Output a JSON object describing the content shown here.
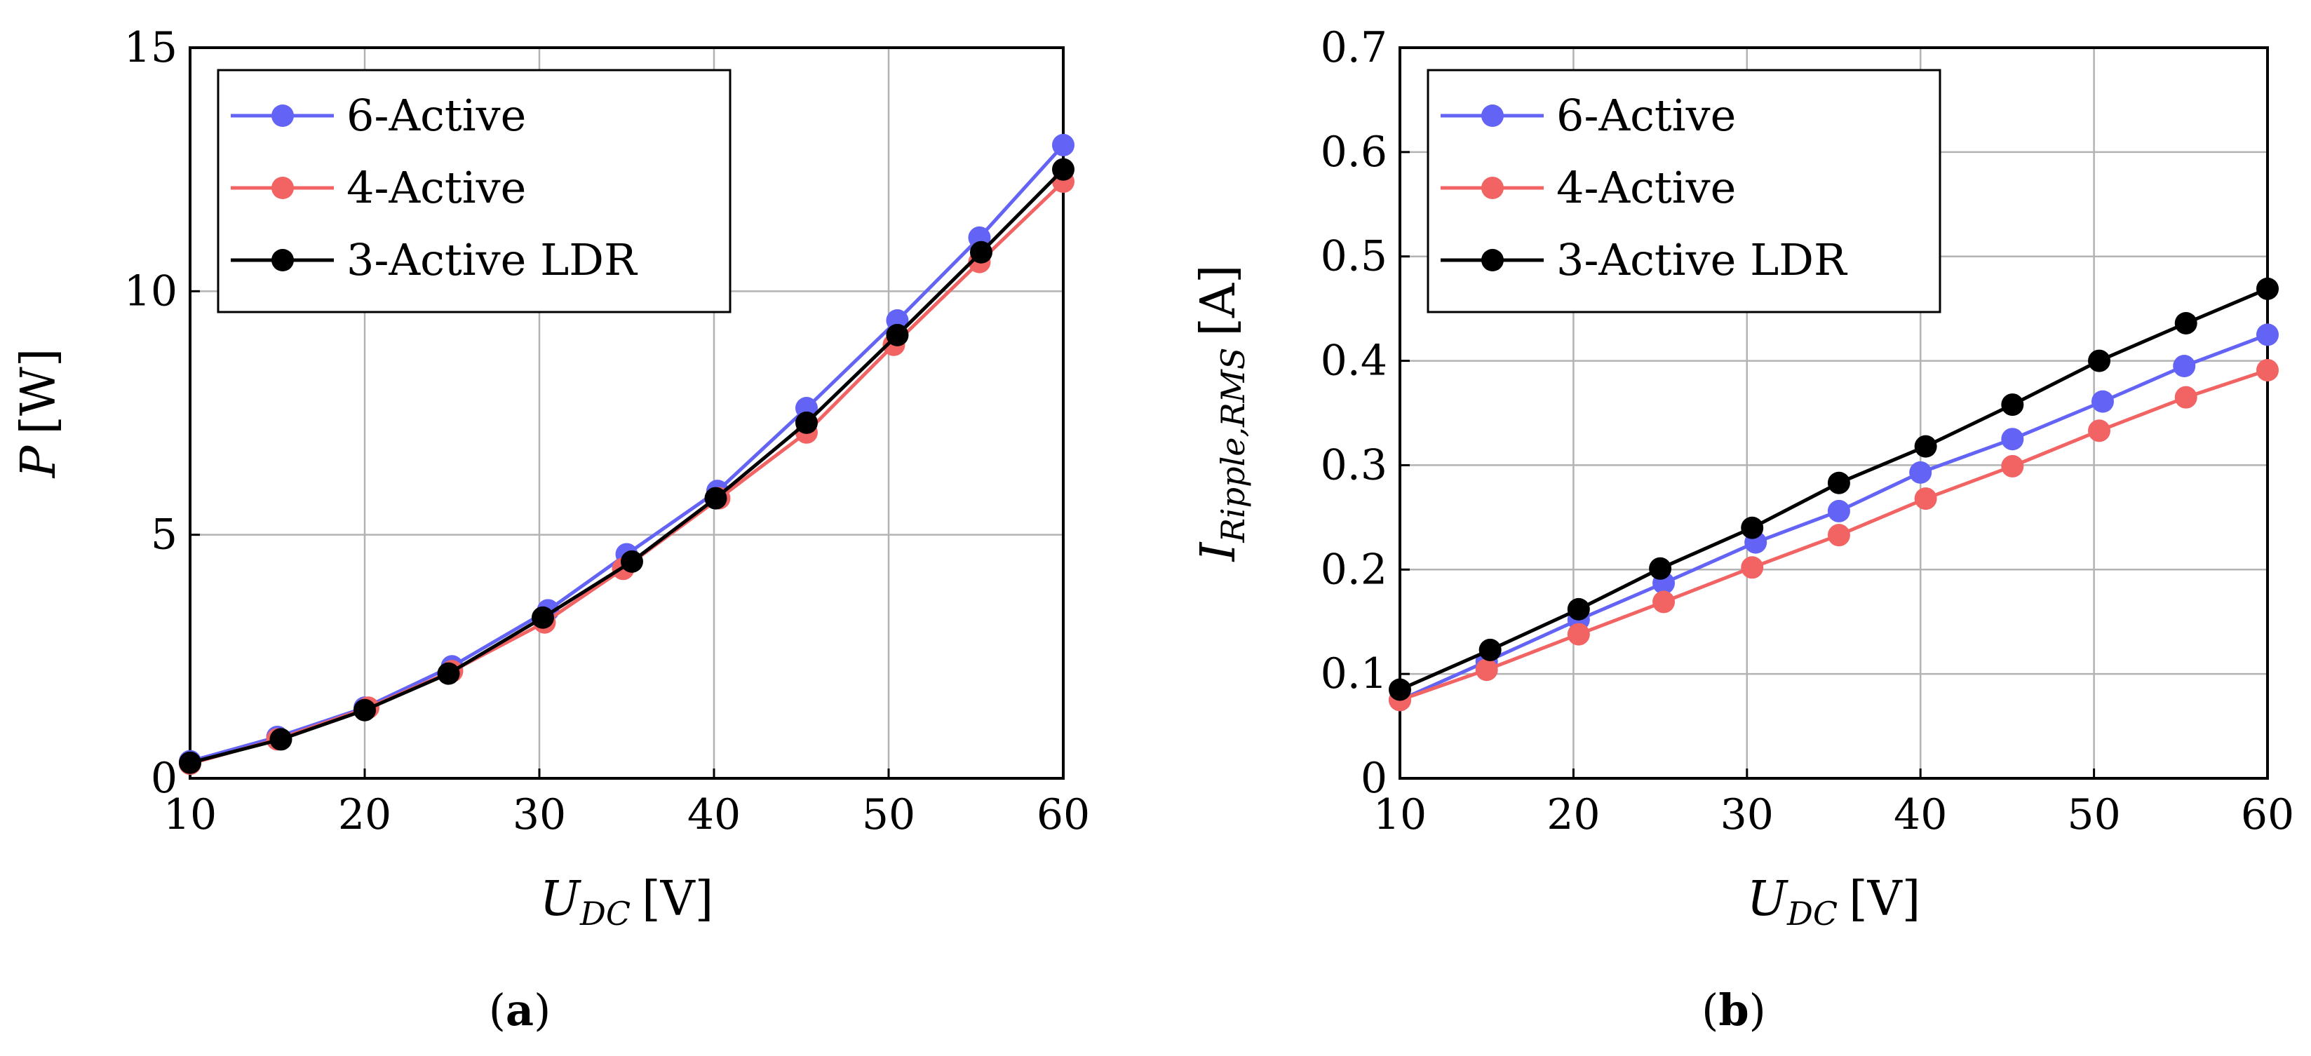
{
  "chart_data": [
    {
      "type": "line",
      "caption": "a",
      "xlabel": {
        "main": "U",
        "sub": "DC",
        "unit": "[V]"
      },
      "ylabel": {
        "main": "P",
        "sub": "",
        "unit": "[W]"
      },
      "xlim": [
        10,
        60
      ],
      "ylim": [
        0,
        15
      ],
      "xticks": [
        "10",
        "20",
        "30",
        "40",
        "50",
        "60"
      ],
      "yticks": [
        "0",
        "5",
        "10",
        "15"
      ],
      "grid": true,
      "legend_position": "top-left",
      "series": [
        {
          "name": "6-Active",
          "color": "#6363f5",
          "x": [
            10,
            15,
            20,
            25,
            30.5,
            35,
            40.2,
            45.3,
            50.5,
            55.2,
            60
          ],
          "y": [
            0.35,
            0.85,
            1.45,
            2.3,
            3.45,
            4.6,
            5.9,
            7.6,
            9.4,
            11.1,
            13.0
          ]
        },
        {
          "name": "4-Active",
          "color": "#f26464",
          "x": [
            10,
            15,
            20.2,
            25,
            30.3,
            34.8,
            40.3,
            45.3,
            50.3,
            55.2,
            60
          ],
          "y": [
            0.3,
            0.8,
            1.45,
            2.2,
            3.2,
            4.3,
            5.75,
            7.1,
            8.9,
            10.6,
            12.25
          ]
        },
        {
          "name": "3-Active LDR",
          "color": "#000000",
          "x": [
            10,
            15.2,
            20,
            24.8,
            30.2,
            35.3,
            40.1,
            45.3,
            50.5,
            55.3,
            60
          ],
          "y": [
            0.32,
            0.8,
            1.4,
            2.15,
            3.3,
            4.45,
            5.75,
            7.3,
            9.1,
            10.8,
            12.5
          ]
        }
      ]
    },
    {
      "type": "line",
      "caption": "b",
      "xlabel": {
        "main": "U",
        "sub": "DC",
        "unit": "[V]"
      },
      "ylabel": {
        "main": "I",
        "sub": "Ripple,RMS",
        "unit": "[A]"
      },
      "xlim": [
        10,
        60
      ],
      "ylim": [
        0,
        0.7
      ],
      "xticks": [
        "10",
        "20",
        "30",
        "40",
        "50",
        "60"
      ],
      "yticks": [
        "0",
        "0.1",
        "0.2",
        "0.3",
        "0.4",
        "0.5",
        "0.6",
        "0.7"
      ],
      "grid": true,
      "legend_position": "top-left",
      "series": [
        {
          "name": "6-Active",
          "color": "#6363f5",
          "x": [
            10,
            15,
            20.3,
            25.2,
            30.5,
            35.3,
            40,
            45.3,
            50.5,
            55.2,
            60
          ],
          "y": [
            0.075,
            0.112,
            0.152,
            0.187,
            0.226,
            0.256,
            0.293,
            0.325,
            0.361,
            0.395,
            0.425
          ]
        },
        {
          "name": "4-Active",
          "color": "#f26464",
          "x": [
            10,
            15,
            20.3,
            25.2,
            30.3,
            35.3,
            40.3,
            45.3,
            50.3,
            55.3,
            60
          ],
          "y": [
            0.075,
            0.104,
            0.138,
            0.169,
            0.202,
            0.233,
            0.268,
            0.299,
            0.333,
            0.365,
            0.391
          ]
        },
        {
          "name": "3-Active LDR",
          "color": "#000000",
          "x": [
            10,
            15.2,
            20.3,
            25,
            30.3,
            35.3,
            40.3,
            45.3,
            50.3,
            55.3,
            60
          ],
          "y": [
            0.085,
            0.123,
            0.162,
            0.201,
            0.24,
            0.283,
            0.318,
            0.358,
            0.4,
            0.436,
            0.469
          ]
        }
      ]
    }
  ]
}
